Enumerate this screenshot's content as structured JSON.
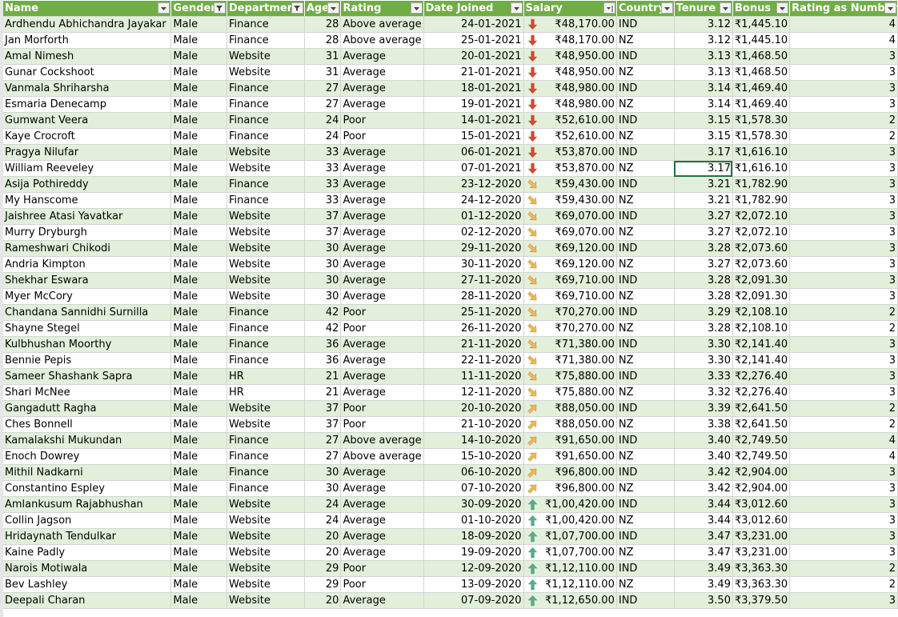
{
  "headers": [
    {
      "label": "Name",
      "filter": "dropdown"
    },
    {
      "label": "Gender",
      "filter": "funnel"
    },
    {
      "label": "Department",
      "filter": "funnel"
    },
    {
      "label": "Age",
      "filter": "dropdown"
    },
    {
      "label": "Rating",
      "filter": "dropdown"
    },
    {
      "label": "Date Joined",
      "filter": "dropdown"
    },
    {
      "label": "Salary",
      "filter": "sort-desc"
    },
    {
      "label": "Country",
      "filter": "dropdown"
    },
    {
      "label": "Tenure",
      "filter": "dropdown"
    },
    {
      "label": "Bonus",
      "filter": "dropdown"
    },
    {
      "label": "Rating as Number",
      "filter": "dropdown"
    }
  ],
  "rows": [
    {
      "name": "Ardhendu Abhichandra Jayakar",
      "gender": "Male",
      "department": "Finance",
      "age": "28",
      "rating": "Above average",
      "date": "24-01-2021",
      "icon": "down",
      "salary": "₹48,170.00",
      "country": "IND",
      "tenure": "3.12",
      "bonus": "₹1,445.10",
      "rnum": "4"
    },
    {
      "name": "Jan Morforth",
      "gender": "Male",
      "department": "Finance",
      "age": "28",
      "rating": "Above average",
      "date": "25-01-2021",
      "icon": "down",
      "salary": "₹48,170.00",
      "country": "NZ",
      "tenure": "3.12",
      "bonus": "₹1,445.10",
      "rnum": "4"
    },
    {
      "name": "Amal Nimesh",
      "gender": "Male",
      "department": "Website",
      "age": "31",
      "rating": "Average",
      "date": "20-01-2021",
      "icon": "down",
      "salary": "₹48,950.00",
      "country": "IND",
      "tenure": "3.13",
      "bonus": "₹1,468.50",
      "rnum": "3"
    },
    {
      "name": "Gunar Cockshoot",
      "gender": "Male",
      "department": "Website",
      "age": "31",
      "rating": "Average",
      "date": "21-01-2021",
      "icon": "down",
      "salary": "₹48,950.00",
      "country": "NZ",
      "tenure": "3.13",
      "bonus": "₹1,468.50",
      "rnum": "3"
    },
    {
      "name": "Vanmala Shriharsha",
      "gender": "Male",
      "department": "Finance",
      "age": "27",
      "rating": "Average",
      "date": "18-01-2021",
      "icon": "down",
      "salary": "₹48,980.00",
      "country": "IND",
      "tenure": "3.14",
      "bonus": "₹1,469.40",
      "rnum": "3"
    },
    {
      "name": "Esmaria Denecamp",
      "gender": "Male",
      "department": "Finance",
      "age": "27",
      "rating": "Average",
      "date": "19-01-2021",
      "icon": "down",
      "salary": "₹48,980.00",
      "country": "NZ",
      "tenure": "3.14",
      "bonus": "₹1,469.40",
      "rnum": "3"
    },
    {
      "name": "Gumwant Veera",
      "gender": "Male",
      "department": "Finance",
      "age": "24",
      "rating": "Poor",
      "date": "14-01-2021",
      "icon": "down",
      "salary": "₹52,610.00",
      "country": "IND",
      "tenure": "3.15",
      "bonus": "₹1,578.30",
      "rnum": "2"
    },
    {
      "name": "Kaye Crocroft",
      "gender": "Male",
      "department": "Finance",
      "age": "24",
      "rating": "Poor",
      "date": "15-01-2021",
      "icon": "down",
      "salary": "₹52,610.00",
      "country": "NZ",
      "tenure": "3.15",
      "bonus": "₹1,578.30",
      "rnum": "2"
    },
    {
      "name": "Pragya Nilufar",
      "gender": "Male",
      "department": "Website",
      "age": "33",
      "rating": "Average",
      "date": "06-01-2021",
      "icon": "down",
      "salary": "₹53,870.00",
      "country": "IND",
      "tenure": "3.17",
      "bonus": "₹1,616.10",
      "rnum": "3"
    },
    {
      "name": "William Reeveley",
      "gender": "Male",
      "department": "Website",
      "age": "33",
      "rating": "Average",
      "date": "07-01-2021",
      "icon": "down",
      "salary": "₹53,870.00",
      "country": "NZ",
      "tenure": "3.17",
      "bonus": "₹1,616.10",
      "rnum": "3"
    },
    {
      "name": "Asija Pothireddy",
      "gender": "Male",
      "department": "Finance",
      "age": "33",
      "rating": "Average",
      "date": "23-12-2020",
      "icon": "downright",
      "salary": "₹59,430.00",
      "country": "IND",
      "tenure": "3.21",
      "bonus": "₹1,782.90",
      "rnum": "3"
    },
    {
      "name": "My Hanscome",
      "gender": "Male",
      "department": "Finance",
      "age": "33",
      "rating": "Average",
      "date": "24-12-2020",
      "icon": "downright",
      "salary": "₹59,430.00",
      "country": "NZ",
      "tenure": "3.21",
      "bonus": "₹1,782.90",
      "rnum": "3"
    },
    {
      "name": "Jaishree Atasi Yavatkar",
      "gender": "Male",
      "department": "Website",
      "age": "37",
      "rating": "Average",
      "date": "01-12-2020",
      "icon": "downright",
      "salary": "₹69,070.00",
      "country": "IND",
      "tenure": "3.27",
      "bonus": "₹2,072.10",
      "rnum": "3"
    },
    {
      "name": "Murry Dryburgh",
      "gender": "Male",
      "department": "Website",
      "age": "37",
      "rating": "Average",
      "date": "02-12-2020",
      "icon": "downright",
      "salary": "₹69,070.00",
      "country": "NZ",
      "tenure": "3.27",
      "bonus": "₹2,072.10",
      "rnum": "3"
    },
    {
      "name": "Rameshwari Chikodi",
      "gender": "Male",
      "department": "Website",
      "age": "30",
      "rating": "Average",
      "date": "29-11-2020",
      "icon": "downright",
      "salary": "₹69,120.00",
      "country": "IND",
      "tenure": "3.28",
      "bonus": "₹2,073.60",
      "rnum": "3"
    },
    {
      "name": "Andria Kimpton",
      "gender": "Male",
      "department": "Website",
      "age": "30",
      "rating": "Average",
      "date": "30-11-2020",
      "icon": "downright",
      "salary": "₹69,120.00",
      "country": "NZ",
      "tenure": "3.27",
      "bonus": "₹2,073.60",
      "rnum": "3"
    },
    {
      "name": "Shekhar Eswara",
      "gender": "Male",
      "department": "Website",
      "age": "30",
      "rating": "Average",
      "date": "27-11-2020",
      "icon": "downright",
      "salary": "₹69,710.00",
      "country": "IND",
      "tenure": "3.28",
      "bonus": "₹2,091.30",
      "rnum": "3"
    },
    {
      "name": "Myer McCory",
      "gender": "Male",
      "department": "Website",
      "age": "30",
      "rating": "Average",
      "date": "28-11-2020",
      "icon": "downright",
      "salary": "₹69,710.00",
      "country": "NZ",
      "tenure": "3.28",
      "bonus": "₹2,091.30",
      "rnum": "3"
    },
    {
      "name": "Chandana Sannidhi Surnilla",
      "gender": "Male",
      "department": "Finance",
      "age": "42",
      "rating": "Poor",
      "date": "25-11-2020",
      "icon": "downright",
      "salary": "₹70,270.00",
      "country": "IND",
      "tenure": "3.29",
      "bonus": "₹2,108.10",
      "rnum": "2"
    },
    {
      "name": "Shayne Stegel",
      "gender": "Male",
      "department": "Finance",
      "age": "42",
      "rating": "Poor",
      "date": "26-11-2020",
      "icon": "downright",
      "salary": "₹70,270.00",
      "country": "NZ",
      "tenure": "3.28",
      "bonus": "₹2,108.10",
      "rnum": "2"
    },
    {
      "name": "Kulbhushan Moorthy",
      "gender": "Male",
      "department": "Finance",
      "age": "36",
      "rating": "Average",
      "date": "21-11-2020",
      "icon": "downright",
      "salary": "₹71,380.00",
      "country": "IND",
      "tenure": "3.30",
      "bonus": "₹2,141.40",
      "rnum": "3"
    },
    {
      "name": "Bennie Pepis",
      "gender": "Male",
      "department": "Finance",
      "age": "36",
      "rating": "Average",
      "date": "22-11-2020",
      "icon": "downright",
      "salary": "₹71,380.00",
      "country": "NZ",
      "tenure": "3.30",
      "bonus": "₹2,141.40",
      "rnum": "3"
    },
    {
      "name": "Sameer Shashank Sapra",
      "gender": "Male",
      "department": "HR",
      "age": "21",
      "rating": "Average",
      "date": "11-11-2020",
      "icon": "downright",
      "salary": "₹75,880.00",
      "country": "IND",
      "tenure": "3.33",
      "bonus": "₹2,276.40",
      "rnum": "3"
    },
    {
      "name": "Shari McNee",
      "gender": "Male",
      "department": "HR",
      "age": "21",
      "rating": "Average",
      "date": "12-11-2020",
      "icon": "downright",
      "salary": "₹75,880.00",
      "country": "NZ",
      "tenure": "3.32",
      "bonus": "₹2,276.40",
      "rnum": "3"
    },
    {
      "name": "Gangadutt Ragha",
      "gender": "Male",
      "department": "Website",
      "age": "37",
      "rating": "Poor",
      "date": "20-10-2020",
      "icon": "upright",
      "salary": "₹88,050.00",
      "country": "IND",
      "tenure": "3.39",
      "bonus": "₹2,641.50",
      "rnum": "2"
    },
    {
      "name": "Ches Bonnell",
      "gender": "Male",
      "department": "Website",
      "age": "37",
      "rating": "Poor",
      "date": "21-10-2020",
      "icon": "upright",
      "salary": "₹88,050.00",
      "country": "NZ",
      "tenure": "3.38",
      "bonus": "₹2,641.50",
      "rnum": "2"
    },
    {
      "name": "Kamalakshi Mukundan",
      "gender": "Male",
      "department": "Finance",
      "age": "27",
      "rating": "Above average",
      "date": "14-10-2020",
      "icon": "upright",
      "salary": "₹91,650.00",
      "country": "IND",
      "tenure": "3.40",
      "bonus": "₹2,749.50",
      "rnum": "4"
    },
    {
      "name": "Enoch Dowrey",
      "gender": "Male",
      "department": "Finance",
      "age": "27",
      "rating": "Above average",
      "date": "15-10-2020",
      "icon": "upright",
      "salary": "₹91,650.00",
      "country": "NZ",
      "tenure": "3.40",
      "bonus": "₹2,749.50",
      "rnum": "4"
    },
    {
      "name": "Mithil Nadkarni",
      "gender": "Male",
      "department": "Finance",
      "age": "30",
      "rating": "Average",
      "date": "06-10-2020",
      "icon": "upright",
      "salary": "₹96,800.00",
      "country": "IND",
      "tenure": "3.42",
      "bonus": "₹2,904.00",
      "rnum": "3"
    },
    {
      "name": "Constantino Espley",
      "gender": "Male",
      "department": "Finance",
      "age": "30",
      "rating": "Average",
      "date": "07-10-2020",
      "icon": "upright",
      "salary": "₹96,800.00",
      "country": "NZ",
      "tenure": "3.42",
      "bonus": "₹2,904.00",
      "rnum": "3"
    },
    {
      "name": "Amlankusum Rajabhushan",
      "gender": "Male",
      "department": "Website",
      "age": "24",
      "rating": "Average",
      "date": "30-09-2020",
      "icon": "up",
      "salary": "₹1,00,420.00",
      "country": "IND",
      "tenure": "3.44",
      "bonus": "₹3,012.60",
      "rnum": "3"
    },
    {
      "name": "Collin Jagson",
      "gender": "Male",
      "department": "Website",
      "age": "24",
      "rating": "Average",
      "date": "01-10-2020",
      "icon": "up",
      "salary": "₹1,00,420.00",
      "country": "NZ",
      "tenure": "3.44",
      "bonus": "₹3,012.60",
      "rnum": "3"
    },
    {
      "name": "Hridaynath Tendulkar",
      "gender": "Male",
      "department": "Website",
      "age": "20",
      "rating": "Average",
      "date": "18-09-2020",
      "icon": "up",
      "salary": "₹1,07,700.00",
      "country": "IND",
      "tenure": "3.47",
      "bonus": "₹3,231.00",
      "rnum": "3"
    },
    {
      "name": "Kaine Padly",
      "gender": "Male",
      "department": "Website",
      "age": "20",
      "rating": "Average",
      "date": "19-09-2020",
      "icon": "up",
      "salary": "₹1,07,700.00",
      "country": "NZ",
      "tenure": "3.47",
      "bonus": "₹3,231.00",
      "rnum": "3"
    },
    {
      "name": "Narois Motiwala",
      "gender": "Male",
      "department": "Website",
      "age": "29",
      "rating": "Poor",
      "date": "12-09-2020",
      "icon": "up",
      "salary": "₹1,12,110.00",
      "country": "IND",
      "tenure": "3.49",
      "bonus": "₹3,363.30",
      "rnum": "2"
    },
    {
      "name": "Bev Lashley",
      "gender": "Male",
      "department": "Website",
      "age": "29",
      "rating": "Poor",
      "date": "13-09-2020",
      "icon": "up",
      "salary": "₹1,12,110.00",
      "country": "NZ",
      "tenure": "3.49",
      "bonus": "₹3,363.30",
      "rnum": "2"
    },
    {
      "name": "Deepali Charan",
      "gender": "Male",
      "department": "Website",
      "age": "20",
      "rating": "Average",
      "date": "07-09-2020",
      "icon": "up",
      "salary": "₹1,12,650.00",
      "country": "IND",
      "tenure": "3.50",
      "bonus": "₹3,379.50",
      "rnum": "3"
    }
  ],
  "icon_colors": {
    "down": "#e0442a",
    "downright": "#f2b64a",
    "upright": "#f2b64a",
    "up": "#4db388"
  },
  "header_color": "#70ad47",
  "band_color": "#e2efda"
}
